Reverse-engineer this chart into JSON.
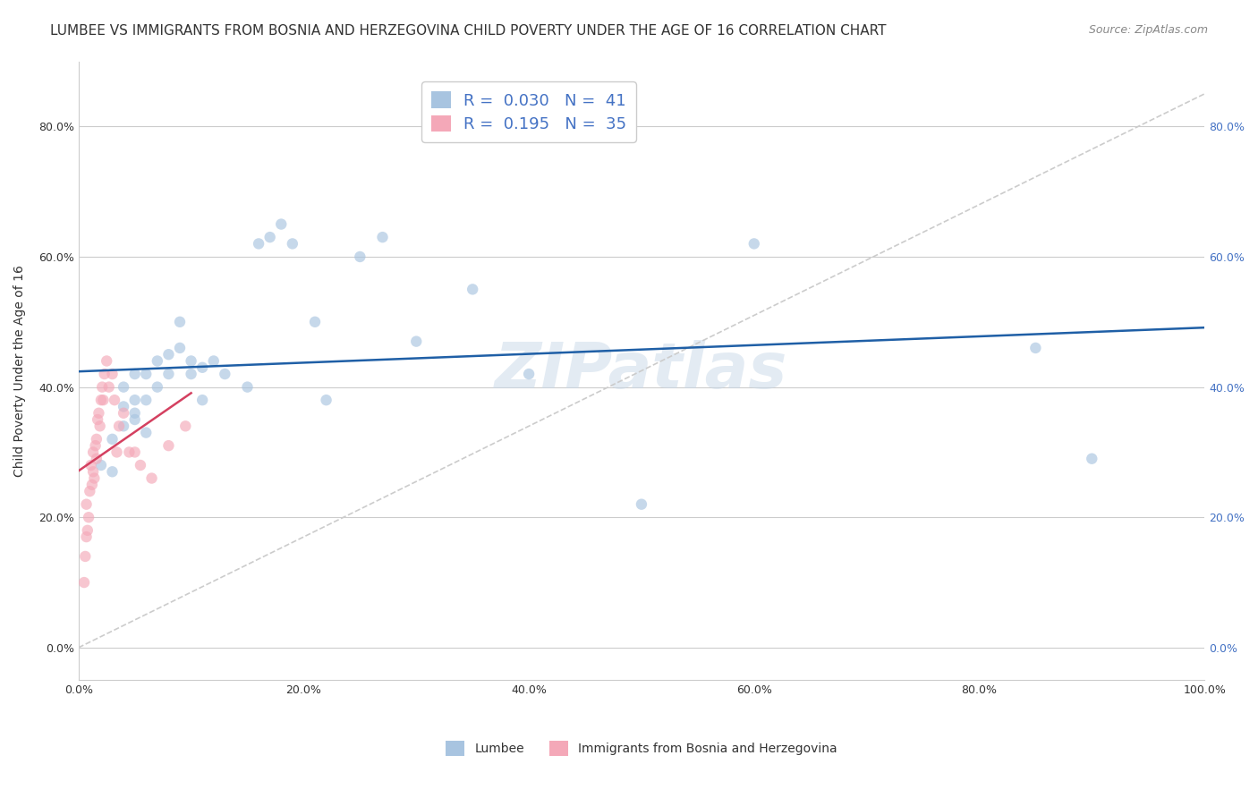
{
  "title": "LUMBEE VS IMMIGRANTS FROM BOSNIA AND HERZEGOVINA CHILD POVERTY UNDER THE AGE OF 16 CORRELATION CHART",
  "source": "Source: ZipAtlas.com",
  "ylabel": "Child Poverty Under the Age of 16",
  "xlabel": "",
  "watermark": "ZIPatlas",
  "lumbee_R": 0.03,
  "lumbee_N": 41,
  "bosnia_R": 0.195,
  "bosnia_N": 35,
  "xlim": [
    0,
    1.0
  ],
  "ylim": [
    -0.05,
    0.9
  ],
  "lumbee_color": "#a8c4e0",
  "lumbee_line_color": "#1f5fa6",
  "bosnia_color": "#f4a8b8",
  "bosnia_line_color": "#d44060",
  "lumbee_scatter_x": [
    0.02,
    0.03,
    0.03,
    0.04,
    0.04,
    0.04,
    0.05,
    0.05,
    0.05,
    0.05,
    0.06,
    0.06,
    0.06,
    0.07,
    0.07,
    0.08,
    0.08,
    0.09,
    0.09,
    0.1,
    0.1,
    0.11,
    0.11,
    0.12,
    0.13,
    0.15,
    0.16,
    0.17,
    0.18,
    0.19,
    0.21,
    0.22,
    0.25,
    0.27,
    0.3,
    0.35,
    0.4,
    0.5,
    0.6,
    0.85,
    0.9
  ],
  "lumbee_scatter_y": [
    0.28,
    0.32,
    0.27,
    0.37,
    0.34,
    0.4,
    0.36,
    0.38,
    0.35,
    0.42,
    0.42,
    0.38,
    0.33,
    0.4,
    0.44,
    0.45,
    0.42,
    0.46,
    0.5,
    0.44,
    0.42,
    0.43,
    0.38,
    0.44,
    0.42,
    0.4,
    0.62,
    0.63,
    0.65,
    0.62,
    0.5,
    0.38,
    0.6,
    0.63,
    0.47,
    0.55,
    0.42,
    0.22,
    0.62,
    0.46,
    0.29
  ],
  "bosnia_scatter_x": [
    0.005,
    0.006,
    0.007,
    0.007,
    0.008,
    0.009,
    0.01,
    0.011,
    0.012,
    0.013,
    0.013,
    0.014,
    0.015,
    0.016,
    0.016,
    0.017,
    0.018,
    0.019,
    0.02,
    0.021,
    0.022,
    0.023,
    0.025,
    0.027,
    0.03,
    0.032,
    0.034,
    0.036,
    0.04,
    0.045,
    0.05,
    0.055,
    0.065,
    0.08,
    0.095
  ],
  "bosnia_scatter_y": [
    0.1,
    0.14,
    0.17,
    0.22,
    0.18,
    0.2,
    0.24,
    0.28,
    0.25,
    0.3,
    0.27,
    0.26,
    0.31,
    0.29,
    0.32,
    0.35,
    0.36,
    0.34,
    0.38,
    0.4,
    0.38,
    0.42,
    0.44,
    0.4,
    0.42,
    0.38,
    0.3,
    0.34,
    0.36,
    0.3,
    0.3,
    0.28,
    0.26,
    0.31,
    0.34
  ],
  "grid_color": "#cccccc",
  "background_color": "#ffffff",
  "title_fontsize": 11,
  "axis_label_fontsize": 10,
  "tick_fontsize": 9,
  "legend_fontsize": 13,
  "scatter_size": 80,
  "scatter_alpha": 0.65,
  "dashed_line_color": "#cccccc"
}
